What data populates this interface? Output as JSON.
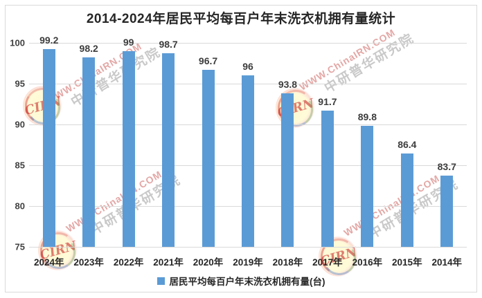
{
  "window": {
    "background_color": "#ffffff",
    "frame_border_color": "#d9d9d9"
  },
  "chart": {
    "title": "2014-2024年居民平均每百户年末洗衣机拥有量统计",
    "legend_label": "居民平均每百户年末洗衣机拥有量(台)"
  },
  "chart_data": {
    "type": "bar",
    "title": "2014-2024年居民平均每百户年末洗衣机拥有量统计",
    "categories": [
      "2024年",
      "2023年",
      "2022年",
      "2021年",
      "2020年",
      "2019年",
      "2018年",
      "2017年",
      "2016年",
      "2015年",
      "2014年"
    ],
    "values": [
      99.2,
      98.2,
      99,
      98.7,
      96.7,
      96,
      93.8,
      91.7,
      89.8,
      86.4,
      83.7
    ],
    "series_name": "居民平均每百户年末洗衣机拥有量(台)",
    "xlabel": "",
    "ylabel": "",
    "ylim": [
      75,
      100
    ],
    "yticks": [
      100,
      95,
      90,
      85,
      80,
      75
    ],
    "grid": true,
    "legend_position": "bottom",
    "bar_color": "#5b9bd5",
    "gridline_color": "#d9d9d9",
    "axis_line_color": "#bfbfbf",
    "tick_label_color": "#404040",
    "data_label_color": "#3d3d3d"
  },
  "watermark": {
    "url_text": "WWW.ChinaIRN.COM",
    "org_text": "中研普华研究院",
    "logo_text": "CIRN"
  }
}
